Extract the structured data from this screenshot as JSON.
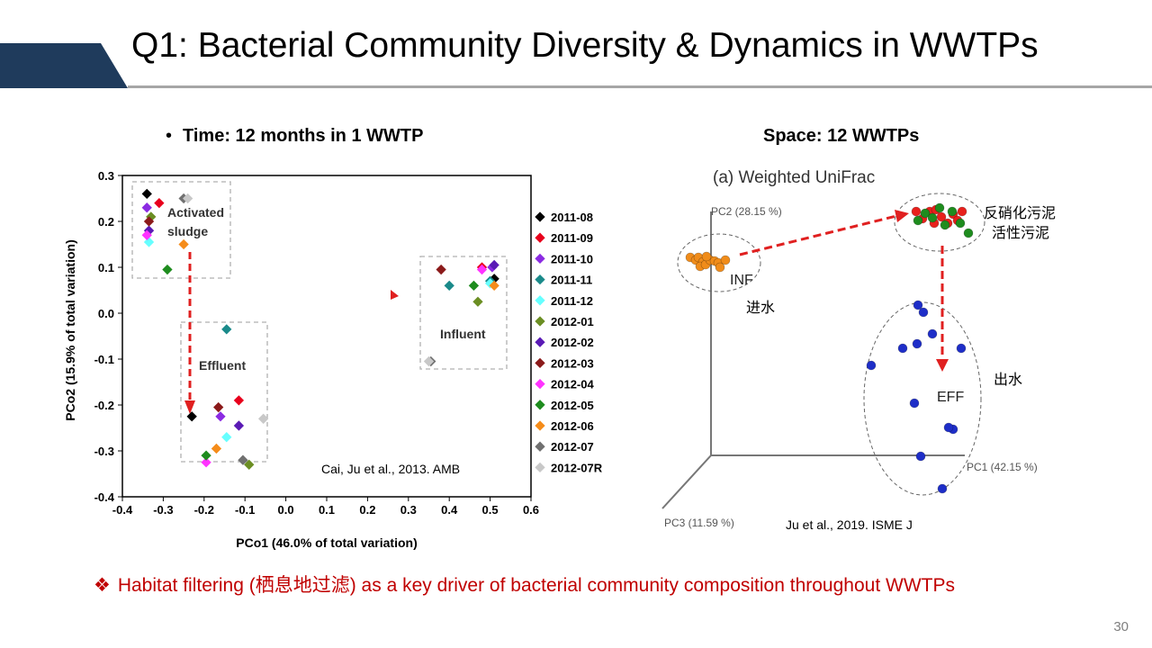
{
  "slide": {
    "title": "Q1: Bacterial Community Diversity & Dynamics in WWTPs",
    "page_number": "30",
    "accent_color": "#1f3b5c",
    "left_bullet": "Time: 12 months in 1 WWTP",
    "right_heading": "Space: 12 WWTPs",
    "conclusion": "Habitat filtering (栖息地过滤) as a key driver of bacterial community composition throughout WWTPs",
    "conclusion_color": "#c00000",
    "bullet_icon": "diamond-bullet-icon"
  },
  "chart_data": [
    {
      "type": "scatter",
      "xlabel": "PCo1 (46.0% of total variation)",
      "ylabel": "PCo2 (15.9% of total variation)",
      "xlim": [
        -0.4,
        0.6
      ],
      "ylim": [
        -0.4,
        0.3
      ],
      "xticks": [
        "-0.4",
        "-0.3",
        "-0.2",
        "-0.1",
        "0.0",
        "0.1",
        "0.2",
        "0.3",
        "0.4",
        "0.5",
        "0.6"
      ],
      "yticks": [
        "0.3",
        "0.2",
        "0.1",
        "0.0",
        "-0.1",
        "-0.2",
        "-0.3",
        "-0.4"
      ],
      "grid": false,
      "legend_position": "right",
      "box_labels": [
        "Activated\nsludge",
        "Effluent",
        "Influent"
      ],
      "citation": "Cai, Ju  et al., 2013. AMB",
      "series": [
        {
          "name": "2011-08",
          "color": "#000000",
          "points": [
            [
              -0.34,
              0.26
            ],
            [
              -0.23,
              -0.225
            ],
            [
              0.51,
              0.075
            ]
          ]
        },
        {
          "name": "2011-09",
          "color": "#e8001c",
          "points": [
            [
              -0.31,
              0.24
            ],
            [
              -0.115,
              -0.19
            ],
            [
              0.48,
              0.1
            ]
          ]
        },
        {
          "name": "2011-10",
          "color": "#8b2be2",
          "points": [
            [
              -0.34,
              0.23
            ],
            [
              -0.16,
              -0.225
            ],
            [
              0.505,
              0.1
            ]
          ]
        },
        {
          "name": "2011-11",
          "color": "#1a8a8a",
          "points": [
            [
              -0.145,
              -0.035
            ],
            [
              0.4,
              0.06
            ],
            [
              0.5,
              0.07
            ]
          ]
        },
        {
          "name": "2011-12",
          "color": "#66ffff",
          "points": [
            [
              -0.335,
              0.155
            ],
            [
              -0.145,
              -0.27
            ],
            [
              0.5,
              0.065
            ]
          ]
        },
        {
          "name": "2012-01",
          "color": "#6b8e23",
          "points": [
            [
              -0.33,
              0.21
            ],
            [
              -0.09,
              -0.33
            ],
            [
              0.47,
              0.025
            ]
          ]
        },
        {
          "name": "2012-02",
          "color": "#5a1ab5",
          "points": [
            [
              -0.335,
              0.18
            ],
            [
              -0.115,
              -0.245
            ],
            [
              0.51,
              0.105
            ]
          ]
        },
        {
          "name": "2012-03",
          "color": "#8b1a1a",
          "points": [
            [
              -0.335,
              0.2
            ],
            [
              -0.165,
              -0.205
            ],
            [
              0.38,
              0.095
            ]
          ]
        },
        {
          "name": "2012-04",
          "color": "#ff33ff",
          "points": [
            [
              -0.34,
              0.17
            ],
            [
              -0.195,
              -0.325
            ],
            [
              0.48,
              0.095
            ]
          ]
        },
        {
          "name": "2012-05",
          "color": "#1e8c1e",
          "points": [
            [
              -0.29,
              0.095
            ],
            [
              -0.195,
              -0.31
            ],
            [
              0.46,
              0.06
            ]
          ]
        },
        {
          "name": "2012-06",
          "color": "#f58c1a",
          "points": [
            [
              -0.25,
              0.15
            ],
            [
              -0.17,
              -0.295
            ],
            [
              0.51,
              0.06
            ]
          ]
        },
        {
          "name": "2012-07",
          "color": "#707070",
          "points": [
            [
              -0.25,
              0.25
            ],
            [
              -0.105,
              -0.32
            ],
            [
              0.355,
              -0.105
            ]
          ]
        },
        {
          "name": "2012-07R",
          "color": "#c8c8c8",
          "points": [
            [
              -0.24,
              0.25
            ],
            [
              -0.055,
              -0.23
            ],
            [
              0.35,
              -0.105
            ]
          ]
        }
      ]
    },
    {
      "type": "scatter",
      "title": "(a) Weighted UniFrac",
      "axis_labels": [
        "PC2 (28.15 %)",
        "PC1 (42.15 %)",
        "PC3 (11.59 %)"
      ],
      "group_labels": {
        "inf": "INF",
        "eff": "EFF"
      },
      "chinese_labels": {
        "inf": "进水",
        "sludge_line1": "反硝化污泥",
        "sludge_line2": "活性污泥",
        "eff": "出水"
      },
      "citation": "Ju et al., 2019. ISME J",
      "groups": [
        {
          "name": "INF",
          "color": "#f08c1a",
          "count": 12
        },
        {
          "name": "Sludge",
          "color": "#e8201c",
          "count": 10
        },
        {
          "name": "Sludge",
          "color": "#1e8c1e",
          "count": 8
        },
        {
          "name": "EFF",
          "color": "#1e2ec8",
          "count": 12
        }
      ]
    }
  ]
}
